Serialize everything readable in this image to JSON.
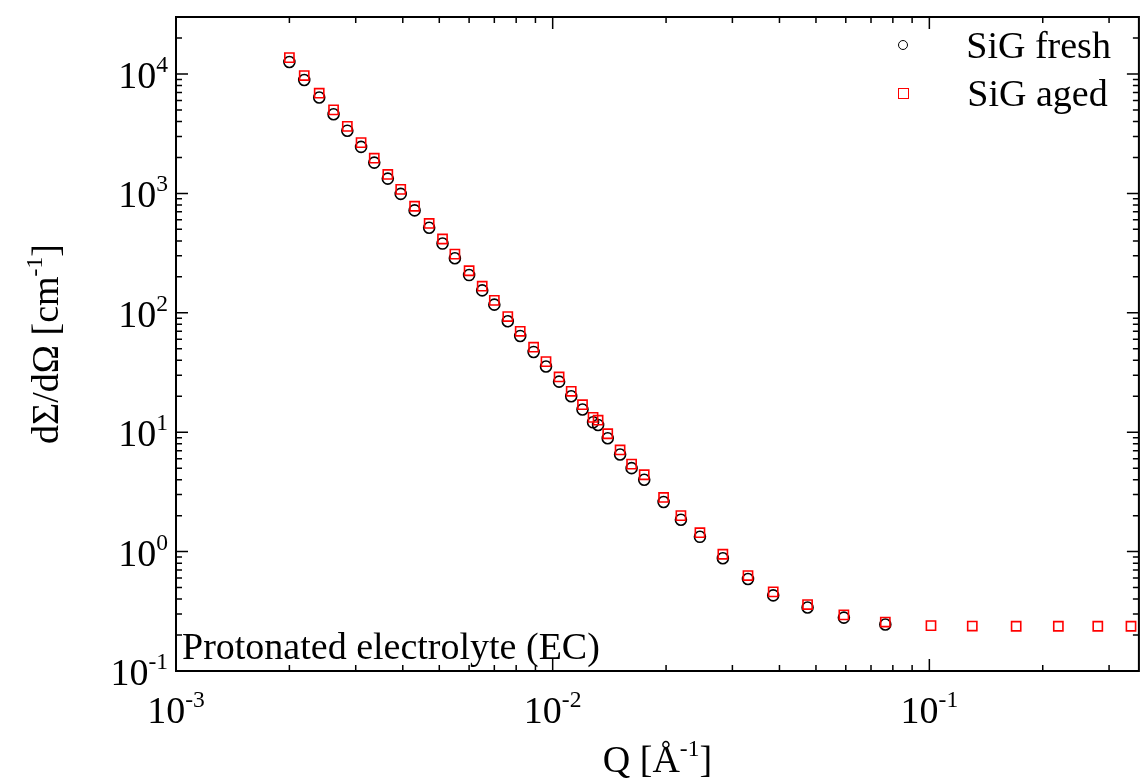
{
  "chart_data": {
    "type": "scatter",
    "xlabel": "Q [Å$^{-1}$]",
    "ylabel": "dΣ/dΩ [cm$^{-1}$]",
    "log": "xy",
    "grid": false,
    "legend": "top right",
    "xlim": [
      0.001,
      0.36
    ],
    "ylim": [
      0.1,
      30000
    ],
    "xticks": [
      {
        "value": 0.001,
        "label": "10$^{-3}$"
      },
      {
        "value": 0.002,
        "label": null
      },
      {
        "value": 0.003,
        "label": null
      },
      {
        "value": 0.004,
        "label": null
      },
      {
        "value": 0.005,
        "label": null
      },
      {
        "value": 0.006,
        "label": null
      },
      {
        "value": 0.007,
        "label": null
      },
      {
        "value": 0.008,
        "label": null
      },
      {
        "value": 0.009,
        "label": null
      },
      {
        "value": 0.01,
        "label": "10$^{-2}$"
      },
      {
        "value": 0.02,
        "label": null
      },
      {
        "value": 0.03,
        "label": null
      },
      {
        "value": 0.04,
        "label": null
      },
      {
        "value": 0.05,
        "label": null
      },
      {
        "value": 0.06,
        "label": null
      },
      {
        "value": 0.07,
        "label": null
      },
      {
        "value": 0.08,
        "label": null
      },
      {
        "value": 0.09,
        "label": null
      },
      {
        "value": 0.1,
        "label": "10$^{-1}$"
      },
      {
        "value": 0.2,
        "label": null
      },
      {
        "value": 0.3,
        "label": null
      }
    ],
    "yticks": [
      {
        "value": 0.1,
        "label": "10$^{-1}$"
      },
      {
        "value": 0.2,
        "label": null
      },
      {
        "value": 0.3,
        "label": null
      },
      {
        "value": 0.4,
        "label": null
      },
      {
        "value": 0.5,
        "label": null
      },
      {
        "value": 0.6,
        "label": null
      },
      {
        "value": 0.7,
        "label": null
      },
      {
        "value": 0.8,
        "label": null
      },
      {
        "value": 0.9,
        "label": null
      },
      {
        "value": 1,
        "label": "10$^{0}$"
      },
      {
        "value": 2,
        "label": null
      },
      {
        "value": 3,
        "label": null
      },
      {
        "value": 4,
        "label": null
      },
      {
        "value": 5,
        "label": null
      },
      {
        "value": 6,
        "label": null
      },
      {
        "value": 7,
        "label": null
      },
      {
        "value": 8,
        "label": null
      },
      {
        "value": 9,
        "label": null
      },
      {
        "value": 10,
        "label": "10$^{1}$"
      },
      {
        "value": 20,
        "label": null
      },
      {
        "value": 30,
        "label": null
      },
      {
        "value": 40,
        "label": null
      },
      {
        "value": 50,
        "label": null
      },
      {
        "value": 60,
        "label": null
      },
      {
        "value": 70,
        "label": null
      },
      {
        "value": 80,
        "label": null
      },
      {
        "value": 90,
        "label": null
      },
      {
        "value": 100,
        "label": "10$^{2}$"
      },
      {
        "value": 200,
        "label": null
      },
      {
        "value": 300,
        "label": null
      },
      {
        "value": 400,
        "label": null
      },
      {
        "value": 500,
        "label": null
      },
      {
        "value": 600,
        "label": null
      },
      {
        "value": 700,
        "label": null
      },
      {
        "value": 800,
        "label": null
      },
      {
        "value": 900,
        "label": null
      },
      {
        "value": 1000,
        "label": "10$^{3}$"
      },
      {
        "value": 2000,
        "label": null
      },
      {
        "value": 3000,
        "label": null
      },
      {
        "value": 4000,
        "label": null
      },
      {
        "value": 5000,
        "label": null
      },
      {
        "value": 6000,
        "label": null
      },
      {
        "value": 7000,
        "label": null
      },
      {
        "value": 8000,
        "label": null
      },
      {
        "value": 9000,
        "label": null
      },
      {
        "value": 10000,
        "label": "10$^{4}$"
      },
      {
        "value": 20000,
        "label": null
      }
    ],
    "annotations": [
      "Protonated electrolyte (EC)"
    ],
    "series": [
      {
        "name": "SiG fresh",
        "color": "#000000",
        "marker": "circle",
        "x": [
          0.002,
          0.00219,
          0.0024,
          0.00262,
          0.00285,
          0.0031,
          0.00336,
          0.00365,
          0.00395,
          0.0043,
          0.0047,
          0.0051,
          0.0055,
          0.006,
          0.0065,
          0.007,
          0.0076,
          0.0082,
          0.0089,
          0.0096,
          0.0104,
          0.0112,
          0.012,
          0.0128,
          0.0132,
          0.014,
          0.0151,
          0.0162,
          0.0175,
          0.0197,
          0.0219,
          0.0246,
          0.0283,
          0.033,
          0.0385,
          0.0475,
          0.0593,
          0.0764
        ],
        "values": [
          12600,
          8900,
          6350,
          4600,
          3350,
          2450,
          1810,
          1330,
          990,
          720,
          515,
          380,
          286,
          207,
          154,
          117,
          85,
          64,
          47,
          35.5,
          26.5,
          20,
          15.5,
          12.1,
          11.5,
          8.9,
          6.5,
          5,
          4,
          2.6,
          1.85,
          1.33,
          0.88,
          0.59,
          0.43,
          0.34,
          0.28,
          0.245
        ]
      },
      {
        "name": "SiG aged",
        "color": "#ff0000",
        "marker": "square",
        "x": [
          0.002,
          0.00219,
          0.0024,
          0.00262,
          0.00285,
          0.0031,
          0.00336,
          0.00365,
          0.00395,
          0.0043,
          0.0047,
          0.0051,
          0.0055,
          0.006,
          0.0065,
          0.007,
          0.0076,
          0.0082,
          0.0089,
          0.0096,
          0.0104,
          0.0112,
          0.012,
          0.0128,
          0.0132,
          0.014,
          0.0151,
          0.0162,
          0.0175,
          0.0197,
          0.0219,
          0.0246,
          0.0283,
          0.033,
          0.0385,
          0.0475,
          0.0593,
          0.0764,
          0.101,
          0.13,
          0.17,
          0.22,
          0.28,
          0.343
        ],
        "values": [
          13700,
          9700,
          6900,
          5000,
          3640,
          2660,
          1970,
          1440,
          1080,
          780,
          560,
          415,
          310,
          225,
          167,
          127,
          93,
          70,
          51.5,
          39,
          29,
          22,
          17,
          13.3,
          12.6,
          9.7,
          7.1,
          5.4,
          4.4,
          2.84,
          2,
          1.44,
          0.95,
          0.63,
          0.46,
          0.36,
          0.295,
          0.257,
          0.24,
          0.238,
          0.237,
          0.237,
          0.237,
          0.237
        ]
      }
    ]
  }
}
